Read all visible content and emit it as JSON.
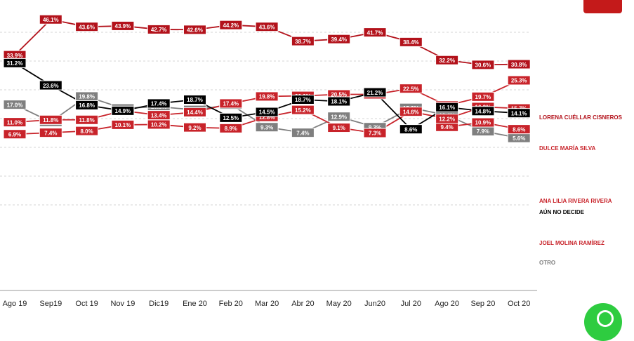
{
  "chart_data": {
    "type": "line",
    "categories": [
      "Ago 19",
      "Sep19",
      "Oct 19",
      "Nov 19",
      "Dic19",
      "Ene 20",
      "Feb 20",
      "Mar 20",
      "Abr 20",
      "May 20",
      "Jun20",
      "Jul 20",
      "Ago 20",
      "Sep 20",
      "Oct 20"
    ],
    "ylim": [
      0,
      50
    ],
    "grid": true,
    "series": [
      {
        "name": "LORENA CUÉLLAR CISNEROS",
        "color": "#b3121b",
        "values": [
          33.9,
          46.1,
          43.6,
          43.9,
          42.7,
          42.6,
          44.2,
          43.6,
          38.7,
          39.4,
          41.7,
          38.4,
          32.2,
          30.6,
          30.8
        ]
      },
      {
        "name": "DULCE MARÍA SILVA",
        "color": "#c8232a",
        "values": [
          11.0,
          11.8,
          11.8,
          14.9,
          13.4,
          14.4,
          17.4,
          19.8,
          20.0,
          20.5,
          20.5,
          22.5,
          16.7,
          19.7,
          25.3
        ]
      },
      {
        "name": "ANA LILIA RIVERA RIVERA",
        "color": "#c8232a",
        "values": [
          6.9,
          7.4,
          8.0,
          10.1,
          10.2,
          9.2,
          8.9,
          12.8,
          15.2,
          9.1,
          7.3,
          14.6,
          12.2,
          16.2,
          15.7
        ]
      },
      {
        "name": "AÚN NO DECIDE",
        "color": "#000000",
        "values": [
          31.2,
          23.6,
          16.8,
          14.9,
          17.4,
          18.7,
          12.5,
          14.5,
          18.7,
          18.1,
          21.2,
          8.6,
          16.1,
          14.8,
          14.1
        ]
      },
      {
        "name": "JOEL MOLINA RAMÍREZ",
        "color": "#c8232a",
        "values": [
          null,
          null,
          null,
          null,
          null,
          null,
          null,
          null,
          null,
          null,
          null,
          null,
          9.4,
          10.9,
          8.6
        ]
      },
      {
        "name": "OTRO",
        "color": "#7f7f7f",
        "values": [
          17.0,
          11.1,
          19.8,
          15.7,
          16.3,
          15.2,
          17.0,
          9.3,
          7.4,
          12.9,
          9.3,
          15.9,
          13.4,
          7.9,
          5.6
        ]
      }
    ],
    "labels": [
      [
        "33.9%",
        "46.1%",
        "43.6%",
        "43.9%",
        "42.7%",
        "42.6%",
        "44.2%",
        "43.6%",
        "38.7%",
        "39.4%",
        "41.7%",
        "38.4%",
        "32.2%",
        "30.6%",
        "30.8%"
      ],
      [
        "11.0%",
        "11.8%",
        "11.8%",
        "14.9%",
        "13.4%",
        "14.4%",
        "17.4%",
        "19.8%",
        "20.0%",
        "20.5%",
        "20.5%",
        "22.5%",
        "16.7%",
        "19.7%",
        "25.3%"
      ],
      [
        "6.9%",
        "7.4%",
        "8.0%",
        "10.1%",
        "10.2%",
        "9.2%",
        "8.9%",
        "12.8%",
        "15.2%",
        "9.1%",
        "7.3%",
        "14.6%",
        "12.2%",
        "16.2%",
        "15.7%"
      ],
      [
        "31.2%",
        "23.6%",
        "16.8%",
        "14.9%",
        "17.4%",
        "18.7%",
        "12.5%",
        "14.5%",
        "18.7%",
        "18.1%",
        "21.2%",
        "8.6%",
        "16.1%",
        "14.8%",
        "14.1%"
      ],
      [
        null,
        null,
        null,
        null,
        null,
        null,
        null,
        null,
        null,
        null,
        null,
        null,
        "9.4%",
        "10.9%",
        "8.6%"
      ],
      [
        "17.0%",
        "11.1%",
        "19.8%",
        "15.7%",
        "16.3%",
        "15.2%",
        "17.0%",
        "9.3%",
        "7.4%",
        "12.9%",
        "9.3%",
        "15.9%",
        "13.4%",
        "7.9%",
        "5.6%"
      ]
    ]
  }
}
